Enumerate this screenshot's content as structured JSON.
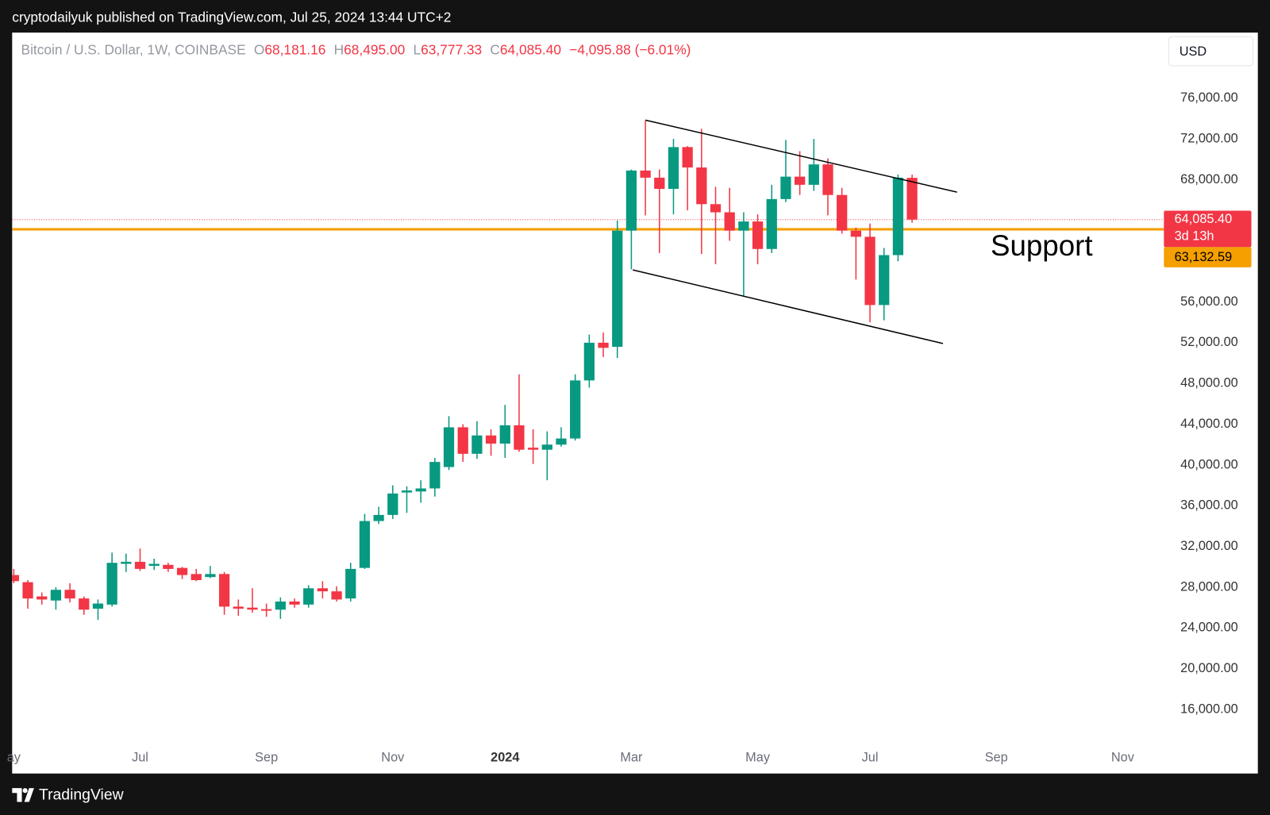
{
  "header": {
    "author_line": "cryptodailyuk published on TradingView.com, Jul 25, 2024 13:44 UTC+2",
    "symbol": "Bitcoin / U.S. Dollar, 1W, COINBASE",
    "ohlc": [
      {
        "key": "O",
        "value": "68,181.16"
      },
      {
        "key": "H",
        "value": "68,495.00"
      },
      {
        "key": "L",
        "value": "63,777.33"
      },
      {
        "key": "C",
        "value": "64,085.40"
      }
    ],
    "change": "−4,095.88 (−6.01%)",
    "currency": "USD",
    "brand": "TradingView"
  },
  "chart_data": {
    "type": "candlestick",
    "categories": [
      "ay",
      null,
      null,
      null,
      null,
      null,
      null,
      null,
      null,
      "Jul",
      null,
      null,
      null,
      null,
      null,
      null,
      null,
      null,
      "Sep",
      null,
      null,
      null,
      null,
      null,
      null,
      null,
      null,
      "Nov",
      null,
      null,
      null,
      null,
      null,
      null,
      null,
      "2024",
      null,
      null,
      null,
      null,
      null,
      null,
      null,
      null,
      "Mar",
      null,
      null,
      null,
      null,
      null,
      null,
      null,
      null,
      "May",
      null,
      null,
      null,
      null,
      null,
      null,
      null,
      "Jul",
      null,
      null,
      null,
      null,
      null,
      null,
      null,
      null,
      "Sep",
      null,
      null,
      null,
      null,
      null,
      null,
      null,
      null,
      "Nov",
      null,
      null
    ],
    "open": [
      29200,
      28500,
      27100,
      26700,
      27750,
      26900,
      25900,
      26300,
      30300,
      30500,
      30100,
      30200,
      29900,
      29300,
      29000,
      29300,
      26100,
      26000,
      25850,
      25800,
      26600,
      26300,
      27900,
      27600,
      26900,
      29900,
      34500,
      35100,
      37300,
      37400,
      37700,
      39800,
      43700,
      41100,
      42900,
      42100,
      43900,
      41700,
      41500,
      42000,
      42600,
      48300,
      52000,
      51600,
      63000,
      68900,
      68200,
      67100,
      71200,
      69200,
      65600,
      64800,
      63000,
      63900,
      61200,
      66100,
      68300,
      67500,
      69500,
      66500,
      63000,
      62400,
      55700,
      60600,
      68181.16,
      null,
      null,
      null,
      null,
      null,
      null,
      null,
      null,
      null,
      null,
      null,
      null,
      null,
      null,
      null,
      null,
      null
    ],
    "high": [
      29800,
      28700,
      27500,
      28000,
      28400,
      27100,
      26800,
      31400,
      31300,
      31800,
      30800,
      30400,
      30000,
      29800,
      30100,
      29500,
      26800,
      27900,
      26400,
      27000,
      26900,
      28200,
      28600,
      28100,
      30400,
      35200,
      35900,
      38000,
      37900,
      38500,
      40700,
      44800,
      44000,
      44300,
      43500,
      45900,
      48900,
      43500,
      43300,
      43700,
      48900,
      52800,
      53000,
      64000,
      69000,
      73800,
      69000,
      72000,
      71300,
      73000,
      67300,
      67200,
      64800,
      64600,
      67500,
      71900,
      70800,
      72000,
      70100,
      67200,
      63300,
      63700,
      61300,
      68500,
      68495,
      null,
      null,
      null,
      null,
      null,
      null,
      null,
      null,
      null,
      null,
      null,
      null,
      null,
      null,
      null,
      null,
      null
    ],
    "low": [
      28400,
      25900,
      26300,
      25800,
      26500,
      25300,
      24800,
      26100,
      29500,
      29600,
      29700,
      29500,
      28800,
      28600,
      28900,
      25300,
      25200,
      25500,
      25100,
      24900,
      26000,
      26000,
      26900,
      26600,
      26600,
      29800,
      34200,
      34700,
      35300,
      36300,
      36900,
      39500,
      40300,
      40600,
      40900,
      40700,
      41300,
      40100,
      38500,
      41800,
      42400,
      47600,
      50600,
      50500,
      59200,
      64500,
      60800,
      64600,
      65000,
      60700,
      59700,
      62000,
      56600,
      59700,
      60800,
      65800,
      66500,
      66900,
      64500,
      62700,
      58200,
      54000,
      54200,
      60000,
      63777.33,
      null,
      null,
      null,
      null,
      null,
      null,
      null,
      null,
      null,
      null,
      null,
      null,
      null,
      null,
      null,
      null,
      null
    ],
    "close": [
      28600,
      26900,
      26800,
      27750,
      26900,
      25800,
      26400,
      30400,
      30500,
      29800,
      30300,
      29800,
      29200,
      28700,
      29300,
      26100,
      25900,
      25800,
      25700,
      26600,
      26300,
      27900,
      27600,
      26800,
      29800,
      34500,
      35100,
      37200,
      37500,
      37700,
      40300,
      43700,
      41100,
      42900,
      42100,
      43900,
      41500,
      41500,
      42000,
      42600,
      48300,
      52000,
      51500,
      63000,
      68900,
      68200,
      67100,
      71200,
      69200,
      65600,
      64800,
      63000,
      63900,
      61200,
      66100,
      68300,
      67500,
      69500,
      66500,
      63000,
      62400,
      55700,
      60600,
      68200,
      64085.4,
      null,
      null,
      null,
      null,
      null,
      null,
      null,
      null,
      null,
      null,
      null,
      null,
      null,
      null,
      null,
      null,
      null
    ],
    "up_color": "#089981",
    "down_color": "#f23645",
    "ylim": [
      12740,
      82440
    ],
    "yticks": [
      {
        "value": 76000,
        "label": "76,000.00"
      },
      {
        "value": 72000,
        "label": "72,000.00"
      },
      {
        "value": 68000,
        "label": "68,000.00"
      },
      {
        "value": 64000,
        "label": "64,000.00"
      },
      {
        "value": 60000,
        "label": "60,000.00"
      },
      {
        "value": 56000,
        "label": "56,000.00"
      },
      {
        "value": 52000,
        "label": "52,000.00"
      },
      {
        "value": 48000,
        "label": "48,000.00"
      },
      {
        "value": 44000,
        "label": "44,000.00"
      },
      {
        "value": 40000,
        "label": "40,000.00"
      },
      {
        "value": 36000,
        "label": "36,000.00"
      },
      {
        "value": 32000,
        "label": "32,000.00"
      },
      {
        "value": 28000,
        "label": "28,000.00"
      },
      {
        "value": 24000,
        "label": "24,000.00"
      },
      {
        "value": 20000,
        "label": "20,000.00"
      },
      {
        "value": 16000,
        "label": "16,000.00"
      }
    ],
    "price_line": {
      "value": 64085.4,
      "label": "64,085.40",
      "countdown": "3d 13h",
      "color": "#f23645"
    },
    "support": {
      "value": 63132.59,
      "label": "63,132.59",
      "text": "Support",
      "color": "#f59f00"
    },
    "trendlines": [
      {
        "x": [
          45,
          67.2
        ],
        "values": [
          73850,
          66780
        ]
      },
      {
        "x": [
          44.1,
          66.2
        ],
        "values": [
          59150,
          51920
        ]
      }
    ]
  }
}
